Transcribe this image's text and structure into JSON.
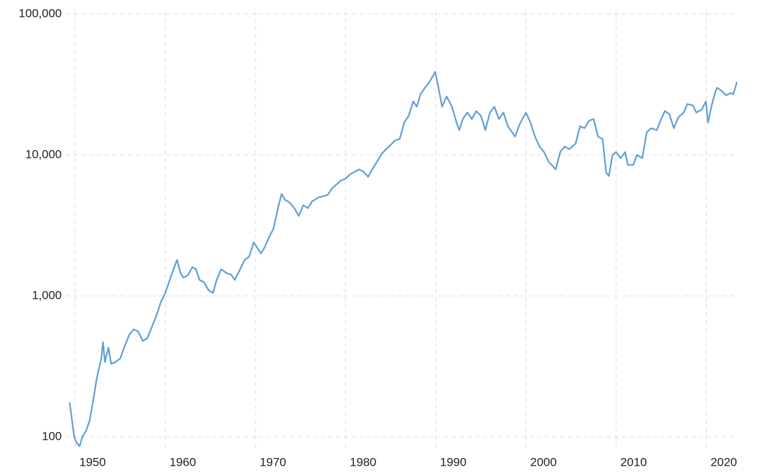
{
  "chart_data": {
    "type": "line",
    "log_scale_y": true,
    "grid": true,
    "xlim": [
      1949.3,
      2023.4
    ],
    "xticks": [
      1950,
      1960,
      1970,
      1980,
      1990,
      2000,
      2010,
      2020
    ],
    "ylim": [
      86,
      100000
    ],
    "yticks": [
      100,
      {
        "value": 1000,
        "label": "1,000"
      },
      {
        "value": 10000,
        "label": "10,000"
      },
      {
        "value": 100000,
        "label": "100,000"
      }
    ],
    "x": [
      1949.4,
      1949.6,
      1949.9,
      1950.2,
      1950.5,
      1950.8,
      1951.2,
      1951.6,
      1952.0,
      1952.4,
      1952.9,
      1953.1,
      1953.3,
      1953.7,
      1954.0,
      1954.5,
      1955.0,
      1955.5,
      1956.0,
      1956.5,
      1957.0,
      1957.5,
      1958.0,
      1958.5,
      1959.0,
      1959.5,
      1960.0,
      1960.5,
      1961.0,
      1961.3,
      1961.7,
      1962.0,
      1962.5,
      1963.0,
      1963.4,
      1963.8,
      1964.3,
      1964.8,
      1965.3,
      1965.7,
      1966.2,
      1966.8,
      1967.3,
      1967.7,
      1968.2,
      1968.8,
      1969.3,
      1969.8,
      1970.2,
      1970.6,
      1971.0,
      1971.5,
      1972.0,
      1972.5,
      1972.9,
      1973.3,
      1973.8,
      1974.3,
      1974.8,
      1975.3,
      1975.8,
      1976.3,
      1977.0,
      1977.5,
      1978.0,
      1978.5,
      1979.0,
      1979.5,
      1980.0,
      1980.5,
      1981.0,
      1981.5,
      1982.0,
      1982.5,
      1983.0,
      1983.5,
      1984.0,
      1984.5,
      1985.0,
      1985.5,
      1986.0,
      1986.5,
      1987.0,
      1987.5,
      1987.9,
      1988.3,
      1988.8,
      1989.3,
      1989.95,
      1990.3,
      1990.7,
      1991.2,
      1991.8,
      1992.3,
      1992.6,
      1993.0,
      1993.5,
      1994.0,
      1994.5,
      1995.0,
      1995.5,
      1996.0,
      1996.5,
      1997.0,
      1997.5,
      1998.0,
      1998.8,
      1999.3,
      2000.0,
      2000.5,
      2001.0,
      2001.5,
      2002.0,
      2002.5,
      2003.3,
      2003.8,
      2004.3,
      2004.8,
      2005.5,
      2006.0,
      2006.5,
      2007.0,
      2007.5,
      2008.0,
      2008.5,
      2008.9,
      2009.2,
      2009.6,
      2010.0,
      2010.5,
      2011.0,
      2011.3,
      2011.9,
      2012.3,
      2012.9,
      2013.4,
      2013.9,
      2014.5,
      2015.0,
      2015.4,
      2015.9,
      2016.4,
      2016.9,
      2017.5,
      2017.9,
      2018.5,
      2018.9,
      2019.5,
      2019.95,
      2020.2,
      2020.6,
      2021.0,
      2021.2,
      2021.7,
      2022.2,
      2022.7,
      2023.0,
      2023.4
    ],
    "series": [
      {
        "color": "#5f9ed8",
        "values": [
          176,
          140,
          100,
          90,
          86,
          100,
          110,
          130,
          180,
          260,
          360,
          470,
          340,
          430,
          330,
          340,
          360,
          440,
          530,
          580,
          560,
          480,
          500,
          600,
          720,
          900,
          1050,
          1300,
          1600,
          1800,
          1450,
          1350,
          1400,
          1600,
          1550,
          1300,
          1250,
          1100,
          1050,
          1300,
          1550,
          1450,
          1420,
          1300,
          1500,
          1800,
          1900,
          2400,
          2200,
          2000,
          2200,
          2600,
          3000,
          4200,
          5300,
          4800,
          4600,
          4200,
          3700,
          4400,
          4200,
          4700,
          5000,
          5100,
          5200,
          5800,
          6200,
          6600,
          6800,
          7300,
          7600,
          7900,
          7600,
          7000,
          8000,
          9000,
          10200,
          11000,
          11800,
          12700,
          13000,
          17000,
          19000,
          24000,
          22000,
          27000,
          30000,
          33000,
          38900,
          30000,
          22000,
          26000,
          22000,
          17000,
          15000,
          18000,
          20000,
          18000,
          20500,
          19000,
          15000,
          20000,
          22000,
          18000,
          20000,
          16000,
          13500,
          16500,
          20000,
          17000,
          13500,
          11500,
          10500,
          9000,
          7900,
          10500,
          11500,
          11000,
          12000,
          16000,
          15500,
          17500,
          18000,
          13500,
          13000,
          7500,
          7100,
          10000,
          10500,
          9500,
          10500,
          8500,
          8500,
          10000,
          9500,
          14500,
          15500,
          15000,
          18000,
          20500,
          19500,
          15500,
          18500,
          20000,
          23000,
          22500,
          20000,
          21000,
          24000,
          17000,
          22500,
          28000,
          30000,
          28500,
          26500,
          27500,
          27000,
          33000
        ]
      }
    ]
  }
}
